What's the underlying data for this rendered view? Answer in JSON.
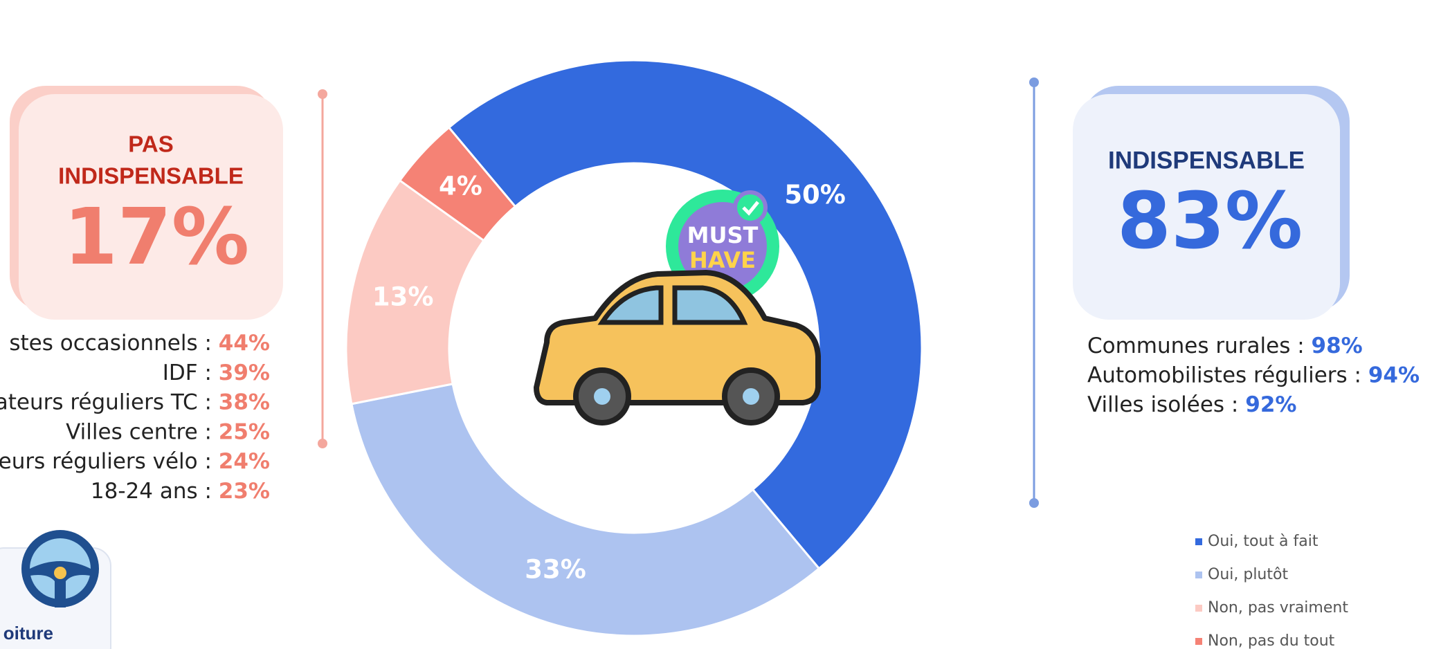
{
  "chart_data": {
    "type": "pie",
    "categories": [
      "Oui, tout à fait",
      "Oui, plutôt",
      "Non, pas vraiment",
      "Non, pas du tout"
    ],
    "values": [
      50,
      33,
      13,
      4
    ],
    "value_labels": [
      "50%",
      "33%",
      "13%",
      "4%"
    ],
    "colors": [
      "#336ade",
      "#adc3f0",
      "#fccac3",
      "#f58275"
    ],
    "legend": "bottom-right",
    "badge": [
      "MUST",
      "HAVE"
    ]
  },
  "left_panel": {
    "title": [
      "PAS",
      "INDISPENSABLE"
    ],
    "value": "17%",
    "items": [
      {
        "label": "stes occasionnels :",
        "value": "44%"
      },
      {
        "label": "IDF :",
        "value": "39%"
      },
      {
        "label": "ateurs réguliers TC :",
        "value": "38%"
      },
      {
        "label": "Villes centre :",
        "value": "25%"
      },
      {
        "label": "eurs réguliers vélo :",
        "value": "24%"
      },
      {
        "label": "18-24 ans :",
        "value": "23%"
      }
    ]
  },
  "right_panel": {
    "title": "INDISPENSABLE",
    "value": "83%",
    "items": [
      {
        "label": "Communes rurales :",
        "value": "98%"
      },
      {
        "label": "Automobilistes réguliers :",
        "value": "94%"
      },
      {
        "label": "Villes isolées :",
        "value": "92%"
      }
    ]
  },
  "corner_card": {
    "label": "oiture"
  }
}
